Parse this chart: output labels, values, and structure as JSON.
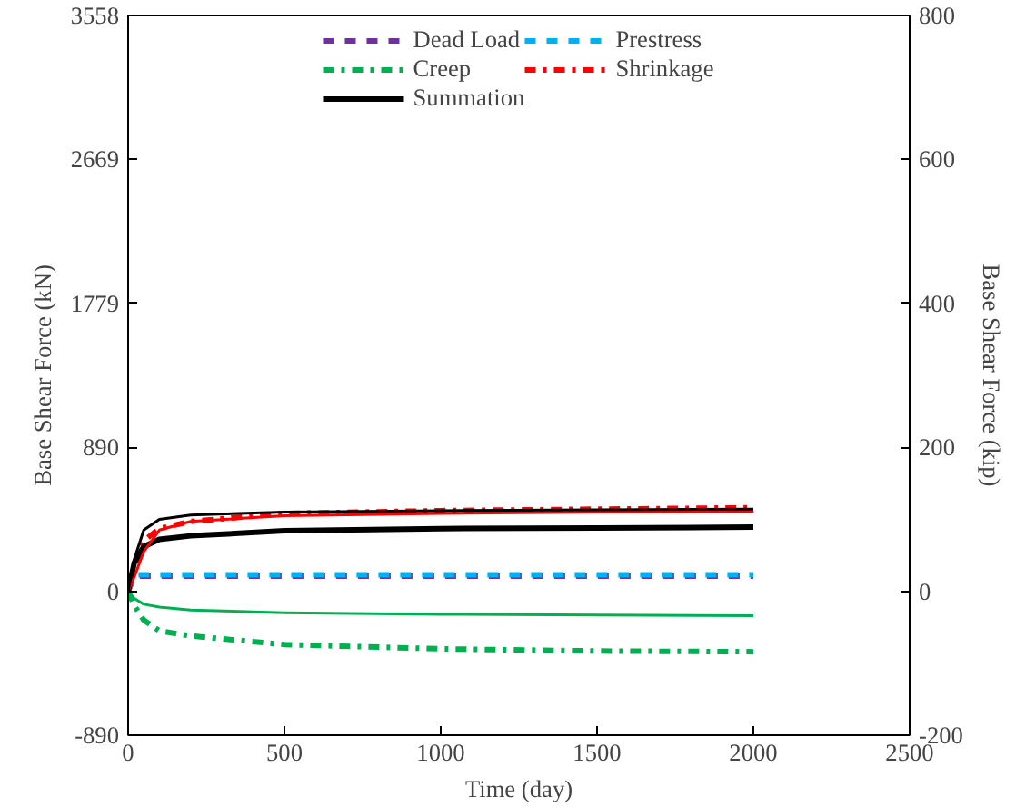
{
  "chart_data": {
    "type": "line",
    "xlabel": "Time (day)",
    "ylabel": "Base Shear Force (kN)",
    "y2label": "Base Shear Force (kip)",
    "x": [
      0,
      20,
      50,
      100,
      200,
      500,
      1000,
      1500,
      2000
    ],
    "xlim": [
      0,
      2500
    ],
    "xticks": [
      0,
      500,
      1000,
      1500,
      2000,
      2500
    ],
    "ylim": [
      -890,
      3558
    ],
    "yticks": [
      -890,
      0,
      890,
      1779,
      2669,
      3558
    ],
    "y2lim": [
      -200,
      800
    ],
    "y2ticks": [
      -200,
      0,
      200,
      400,
      600,
      800
    ],
    "grid": false,
    "legend": "top",
    "marker": "none",
    "series": [
      {
        "name": "Dead Load",
        "color": "#7030a0",
        "axis": "y2",
        "line_style": "dashed",
        "values": [
          0,
          21,
          21,
          21,
          21,
          21,
          21,
          21,
          21
        ]
      },
      {
        "name": "Prestress",
        "color": "#00b0f0",
        "axis": "y2",
        "line_style": "dashed",
        "values": [
          0,
          23,
          23,
          23,
          23,
          23,
          23,
          23,
          23
        ]
      },
      {
        "name": "Creep",
        "color": "#00b050",
        "axis": "y2",
        "line_style": "dashdot",
        "values": [
          0,
          -20,
          -40,
          -55,
          -62,
          -74,
          -80,
          -83,
          -84
        ]
      },
      {
        "name": "Shrinkage",
        "color": "#ff0000",
        "axis": "y2",
        "line_style": "dashdot",
        "values": [
          0,
          30,
          70,
          87,
          97,
          108,
          112,
          114,
          116
        ]
      },
      {
        "name": "Summation",
        "color": "#000000",
        "axis": "y2",
        "line_style": "solid",
        "values": [
          0,
          40,
          62,
          72,
          77,
          84,
          87,
          88,
          89
        ]
      },
      {
        "color": "#00b050",
        "axis": "y2",
        "line_style": "solid",
        "values": [
          0,
          -10,
          -18,
          -22,
          -26,
          -30,
          -32,
          -33,
          -34
        ]
      },
      {
        "color": "#ff0000",
        "axis": "y2",
        "line_style": "solid",
        "values": [
          0,
          20,
          55,
          85,
          97,
          105,
          108,
          110,
          111
        ]
      },
      {
        "color": "#000000",
        "axis": "y2",
        "line_style": "solid",
        "values": [
          0,
          45,
          85,
          100,
          106,
          110,
          112,
          113,
          114
        ]
      }
    ]
  }
}
